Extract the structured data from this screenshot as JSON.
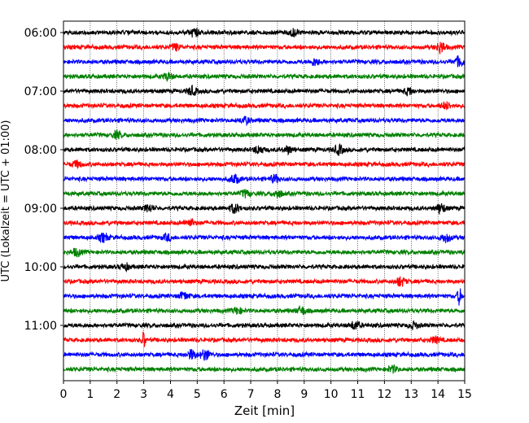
{
  "chart_data": {
    "type": "line",
    "title": "",
    "xlabel": "Zeit  [min]",
    "ylabel": "UTC (Lokalzeit = UTC + 01:00)",
    "xlim": [
      0,
      15
    ],
    "x_ticks": [
      "0",
      "1",
      "2",
      "3",
      "4",
      "5",
      "6",
      "7",
      "8",
      "9",
      "10",
      "11",
      "12",
      "13",
      "14",
      "15"
    ],
    "y_ticks": [
      "06:00",
      "07:00",
      "08:00",
      "09:00",
      "10:00",
      "11:00"
    ],
    "grid": "vertical dotted",
    "legend": "none",
    "trace_interval_min": 15,
    "traces": [
      {
        "start": "06:00",
        "color": "#000000",
        "events": [
          [
            4.9,
            1.8
          ],
          [
            8.6,
            1.2
          ]
        ]
      },
      {
        "start": "06:15",
        "color": "#ff0000",
        "events": [
          [
            14.1,
            2.0
          ],
          [
            4.2,
            1.1
          ]
        ]
      },
      {
        "start": "06:30",
        "color": "#0000ff",
        "events": [
          [
            14.8,
            1.8
          ],
          [
            9.4,
            1.2
          ]
        ]
      },
      {
        "start": "06:45",
        "color": "#008000",
        "events": [
          [
            3.9,
            1.2
          ]
        ]
      },
      {
        "start": "07:00",
        "color": "#000000",
        "events": [
          [
            4.8,
            1.5
          ],
          [
            12.9,
            1.2
          ]
        ]
      },
      {
        "start": "07:15",
        "color": "#ff0000",
        "events": [
          [
            14.3,
            1.2
          ]
        ]
      },
      {
        "start": "07:30",
        "color": "#0000ff",
        "events": [
          [
            6.8,
            1.1
          ]
        ]
      },
      {
        "start": "07:45",
        "color": "#008000",
        "events": [
          [
            2.0,
            1.2
          ]
        ]
      },
      {
        "start": "08:00",
        "color": "#000000",
        "events": [
          [
            7.3,
            1.4
          ],
          [
            10.3,
            1.6
          ],
          [
            8.4,
            1.2
          ]
        ]
      },
      {
        "start": "08:15",
        "color": "#ff0000",
        "events": [
          [
            0.5,
            1.1
          ]
        ]
      },
      {
        "start": "08:30",
        "color": "#0000ff",
        "events": [
          [
            6.4,
            1.6
          ],
          [
            7.9,
            1.3
          ]
        ]
      },
      {
        "start": "08:45",
        "color": "#008000",
        "events": [
          [
            8.0,
            1.3
          ],
          [
            6.8,
            1.2
          ]
        ]
      },
      {
        "start": "09:00",
        "color": "#000000",
        "events": [
          [
            6.4,
            1.6
          ],
          [
            14.1,
            1.7
          ],
          [
            3.2,
            1.2
          ]
        ]
      },
      {
        "start": "09:15",
        "color": "#ff0000",
        "events": [
          [
            4.7,
            1.3
          ]
        ]
      },
      {
        "start": "09:30",
        "color": "#0000ff",
        "events": [
          [
            1.5,
            1.5
          ],
          [
            14.3,
            1.5
          ],
          [
            3.9,
            1.2
          ]
        ]
      },
      {
        "start": "09:45",
        "color": "#008000",
        "events": [
          [
            0.5,
            1.3
          ]
        ]
      },
      {
        "start": "10:00",
        "color": "#000000",
        "events": [
          [
            2.3,
            1.1
          ]
        ]
      },
      {
        "start": "10:15",
        "color": "#ff0000",
        "events": [
          [
            12.6,
            1.6
          ]
        ]
      },
      {
        "start": "10:30",
        "color": "#0000ff",
        "events": [
          [
            14.8,
            3.0
          ],
          [
            4.5,
            1.3
          ]
        ]
      },
      {
        "start": "10:45",
        "color": "#008000",
        "events": [
          [
            8.9,
            1.3
          ],
          [
            6.5,
            1.1
          ]
        ]
      },
      {
        "start": "11:00",
        "color": "#000000",
        "events": [
          [
            10.9,
            1.4
          ],
          [
            13.1,
            1.1
          ]
        ]
      },
      {
        "start": "11:15",
        "color": "#ff0000",
        "events": [
          [
            3.0,
            2.8
          ],
          [
            13.9,
            1.0
          ]
        ]
      },
      {
        "start": "11:30",
        "color": "#0000ff",
        "events": [
          [
            4.8,
            1.6
          ],
          [
            5.3,
            2.0
          ]
        ]
      },
      {
        "start": "11:45",
        "color": "#008000",
        "events": [
          [
            12.3,
            1.1
          ]
        ]
      }
    ]
  }
}
